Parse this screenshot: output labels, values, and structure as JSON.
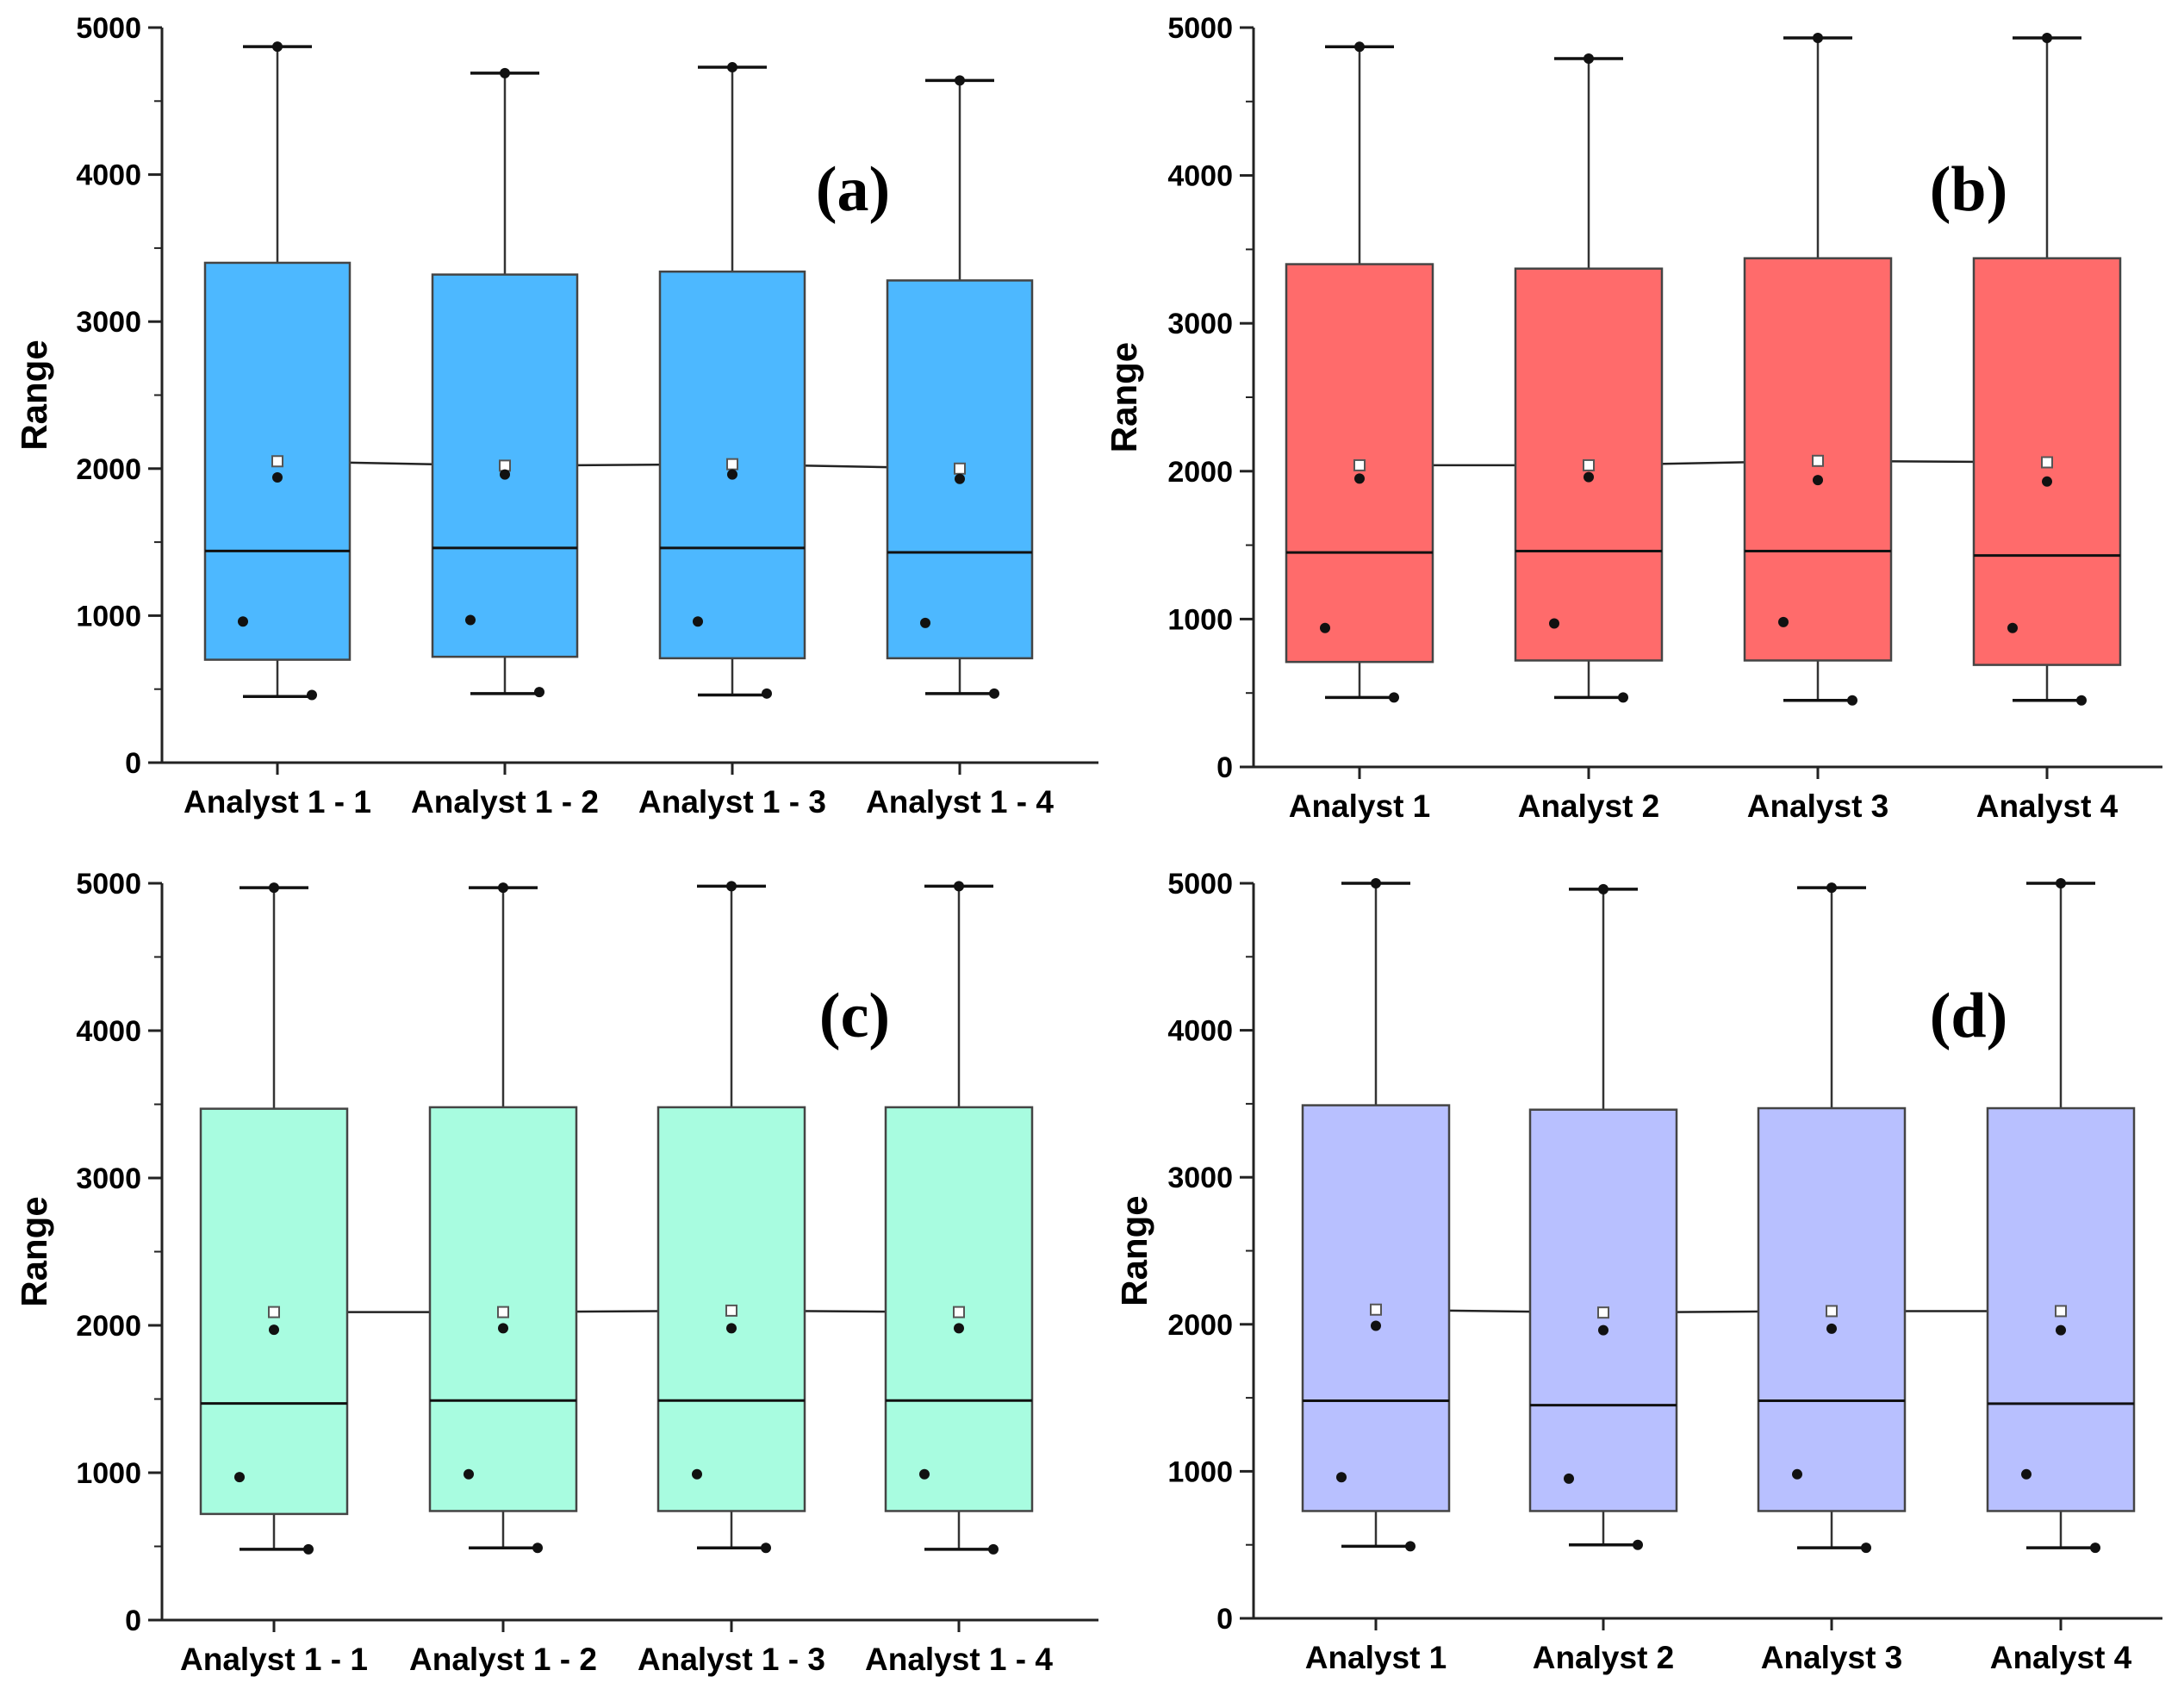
{
  "chart_data": [
    {
      "type": "box",
      "panel_label": "(a)",
      "ylabel": "Range",
      "ylim": [
        0,
        5000
      ],
      "yticks": [
        0,
        1000,
        2000,
        3000,
        4000,
        5000
      ],
      "box_color": "#4db8ff",
      "categories": [
        "Analyst 1 - 1",
        "Analyst 1 - 2",
        "Analyst 1 - 3",
        "Analyst 1 - 4"
      ],
      "boxes": [
        {
          "whisker_low": 450,
          "q1": 700,
          "median": 1440,
          "q3": 3400,
          "whisker_high": 4870,
          "mean": 2050,
          "p99": 4870,
          "p1": 460,
          "p25_dot": 960,
          "p_mid_dot": 1940
        },
        {
          "whisker_low": 470,
          "q1": 720,
          "median": 1460,
          "q3": 3320,
          "whisker_high": 4690,
          "mean": 2020,
          "p99": 4690,
          "p1": 480,
          "p25_dot": 970,
          "p_mid_dot": 1960
        },
        {
          "whisker_low": 460,
          "q1": 710,
          "median": 1460,
          "q3": 3340,
          "whisker_high": 4730,
          "mean": 2030,
          "p99": 4730,
          "p1": 470,
          "p25_dot": 960,
          "p_mid_dot": 1960
        },
        {
          "whisker_low": 470,
          "q1": 710,
          "median": 1430,
          "q3": 3280,
          "whisker_high": 4640,
          "mean": 2000,
          "p99": 4640,
          "p1": 470,
          "p25_dot": 950,
          "p_mid_dot": 1930
        }
      ]
    },
    {
      "type": "box",
      "panel_label": "(b)",
      "ylabel": "Range",
      "ylim": [
        0,
        5000
      ],
      "yticks": [
        0,
        1000,
        2000,
        3000,
        4000,
        5000
      ],
      "box_color": "#ff6b6b",
      "categories": [
        "Analyst 1",
        "Analyst 2",
        "Analyst 3",
        "Analyst 4"
      ],
      "boxes": [
        {
          "whisker_low": 470,
          "q1": 710,
          "median": 1450,
          "q3": 3400,
          "whisker_high": 4870,
          "mean": 2040,
          "p99": 4870,
          "p1": 470,
          "p25_dot": 940,
          "p_mid_dot": 1950
        },
        {
          "whisker_low": 470,
          "q1": 720,
          "median": 1460,
          "q3": 3370,
          "whisker_high": 4790,
          "mean": 2040,
          "p99": 4790,
          "p1": 470,
          "p25_dot": 970,
          "p_mid_dot": 1960
        },
        {
          "whisker_low": 450,
          "q1": 720,
          "median": 1460,
          "q3": 3440,
          "whisker_high": 4930,
          "mean": 2070,
          "p99": 4930,
          "p1": 450,
          "p25_dot": 980,
          "p_mid_dot": 1940
        },
        {
          "whisker_low": 450,
          "q1": 690,
          "median": 1430,
          "q3": 3440,
          "whisker_high": 4930,
          "mean": 2060,
          "p99": 4930,
          "p1": 450,
          "p25_dot": 940,
          "p_mid_dot": 1930
        }
      ]
    },
    {
      "type": "box",
      "panel_label": "(c)",
      "ylabel": "Range",
      "ylim": [
        0,
        5000
      ],
      "yticks": [
        0,
        1000,
        2000,
        3000,
        4000,
        5000
      ],
      "box_color": "#a8fce0",
      "categories": [
        "Analyst 1 - 1",
        "Analyst 1 - 2",
        "Analyst 1 - 3",
        "Analyst 1 - 4"
      ],
      "boxes": [
        {
          "whisker_low": 480,
          "q1": 720,
          "median": 1470,
          "q3": 3470,
          "whisker_high": 4970,
          "mean": 2090,
          "p99": 4970,
          "p1": 480,
          "p25_dot": 970,
          "p_mid_dot": 1970
        },
        {
          "whisker_low": 490,
          "q1": 740,
          "median": 1490,
          "q3": 3480,
          "whisker_high": 4970,
          "mean": 2090,
          "p99": 4970,
          "p1": 490,
          "p25_dot": 990,
          "p_mid_dot": 1980
        },
        {
          "whisker_low": 490,
          "q1": 740,
          "median": 1490,
          "q3": 3480,
          "whisker_high": 4980,
          "mean": 2100,
          "p99": 4980,
          "p1": 490,
          "p25_dot": 990,
          "p_mid_dot": 1980
        },
        {
          "whisker_low": 480,
          "q1": 740,
          "median": 1490,
          "q3": 3480,
          "whisker_high": 4980,
          "mean": 2090,
          "p99": 4980,
          "p1": 480,
          "p25_dot": 990,
          "p_mid_dot": 1980
        }
      ]
    },
    {
      "type": "box",
      "panel_label": "(d)",
      "ylabel": "Range",
      "ylim": [
        0,
        5000
      ],
      "yticks": [
        0,
        1000,
        2000,
        3000,
        4000,
        5000
      ],
      "box_color": "#b8c0ff",
      "categories": [
        "Analyst 1",
        "Analyst 2",
        "Analyst 3",
        "Analyst 4"
      ],
      "boxes": [
        {
          "whisker_low": 490,
          "q1": 730,
          "median": 1480,
          "q3": 3490,
          "whisker_high": 5000,
          "mean": 2100,
          "p99": 5000,
          "p1": 490,
          "p25_dot": 960,
          "p_mid_dot": 1990
        },
        {
          "whisker_low": 500,
          "q1": 730,
          "median": 1450,
          "q3": 3460,
          "whisker_high": 4960,
          "mean": 2080,
          "p99": 4960,
          "p1": 500,
          "p25_dot": 950,
          "p_mid_dot": 1960
        },
        {
          "whisker_low": 480,
          "q1": 730,
          "median": 1480,
          "q3": 3470,
          "whisker_high": 4970,
          "mean": 2090,
          "p99": 4970,
          "p1": 480,
          "p25_dot": 980,
          "p_mid_dot": 1970
        },
        {
          "whisker_low": 480,
          "q1": 730,
          "median": 1460,
          "q3": 3470,
          "whisker_high": 5000,
          "mean": 2090,
          "p99": 5000,
          "p1": 480,
          "p25_dot": 980,
          "p_mid_dot": 1960
        }
      ]
    }
  ]
}
